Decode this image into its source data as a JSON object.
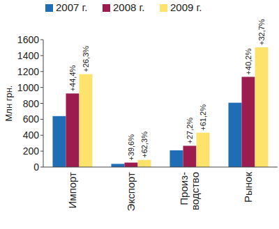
{
  "chart_data": {
    "type": "bar",
    "y_label": "Млн грн.",
    "categories": [
      "Импорт",
      "Экспорт",
      "Произ-\nводство",
      "Рынок"
    ],
    "series": [
      {
        "name": "2007 г.",
        "color": "#1f6db4",
        "values": [
          640,
          40,
          210,
          808
        ]
      },
      {
        "name": "2008 г.",
        "color": "#9c1c50",
        "values": [
          924,
          56,
          267,
          1133
        ],
        "change_labels": [
          "+44,4%",
          "+39,6%",
          "+27,2%",
          "+40,2%"
        ]
      },
      {
        "name": "2009 г.",
        "color": "#fde36c",
        "values": [
          1167,
          90,
          431,
          1504
        ],
        "change_labels": [
          "+26,3%",
          "+62,3%",
          "+61,2%",
          "+32,7%"
        ]
      }
    ],
    "ylim": [
      0,
      1600
    ],
    "yticks": [
      0,
      200,
      400,
      600,
      800,
      1000,
      1200,
      1400,
      1600
    ],
    "grid": false,
    "legend": "top"
  }
}
